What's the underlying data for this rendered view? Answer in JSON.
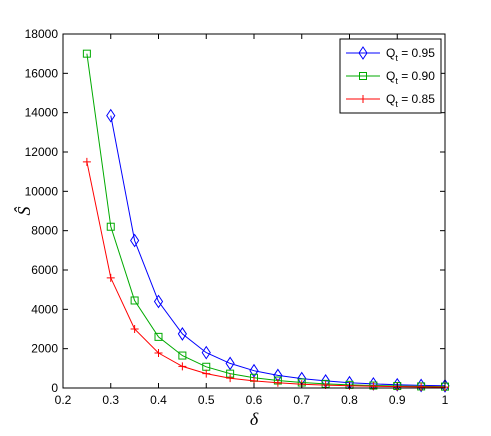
{
  "chart_data": {
    "type": "line",
    "title": "",
    "xlabel": "δ",
    "ylabel": "Ŝ",
    "xlim": [
      0.2,
      1.0
    ],
    "ylim": [
      0,
      18000
    ],
    "x_ticks": [
      0.2,
      0.3,
      0.4,
      0.5,
      0.6,
      0.7,
      0.8,
      0.9,
      1.0
    ],
    "x_tick_labels": [
      "0.2",
      "0.3",
      "0.4",
      "0.5",
      "0.6",
      "0.7",
      "0.8",
      "0.9",
      "1"
    ],
    "y_ticks": [
      0,
      2000,
      4000,
      6000,
      8000,
      10000,
      12000,
      14000,
      16000,
      18000
    ],
    "y_tick_labels": [
      "0",
      "2000",
      "4000",
      "6000",
      "8000",
      "10000",
      "12000",
      "14000",
      "16000",
      "18000"
    ],
    "grid": false,
    "legend_position": "top-right",
    "series": [
      {
        "name": "Q_t = 0.95",
        "legend_main": "Q",
        "legend_sub": "t",
        "legend_rest": " = 0.95",
        "color": "#0000ff",
        "marker": "diamond",
        "x": [
          0.3,
          0.35,
          0.4,
          0.45,
          0.5,
          0.55,
          0.6,
          0.65,
          0.7,
          0.75,
          0.8,
          0.85,
          0.9,
          0.95,
          1.0
        ],
        "y": [
          13850,
          7500,
          4400,
          2750,
          1800,
          1250,
          880,
          640,
          480,
          360,
          270,
          210,
          165,
          130,
          110
        ]
      },
      {
        "name": "Q_t = 0.90",
        "legend_main": "Q",
        "legend_sub": "t",
        "legend_rest": " = 0.90",
        "color": "#00aa00",
        "marker": "square",
        "x": [
          0.25,
          0.3,
          0.35,
          0.4,
          0.45,
          0.5,
          0.55,
          0.6,
          0.65,
          0.7,
          0.75,
          0.8,
          0.85,
          0.9,
          0.95,
          1.0
        ],
        "y": [
          17000,
          8200,
          4450,
          2600,
          1650,
          1080,
          730,
          520,
          380,
          280,
          210,
          160,
          125,
          100,
          80,
          70
        ]
      },
      {
        "name": "Q_t = 0.85",
        "legend_main": "Q",
        "legend_sub": "t",
        "legend_rest": " = 0.85",
        "color": "#ff0000",
        "marker": "plus",
        "x": [
          0.25,
          0.3,
          0.35,
          0.4,
          0.45,
          0.5,
          0.55,
          0.6,
          0.65,
          0.7,
          0.75,
          0.8,
          0.85,
          0.9,
          0.95,
          1.0
        ],
        "y": [
          11500,
          5600,
          3000,
          1780,
          1100,
          730,
          500,
          360,
          265,
          195,
          150,
          115,
          90,
          70,
          55,
          45
        ]
      }
    ]
  }
}
